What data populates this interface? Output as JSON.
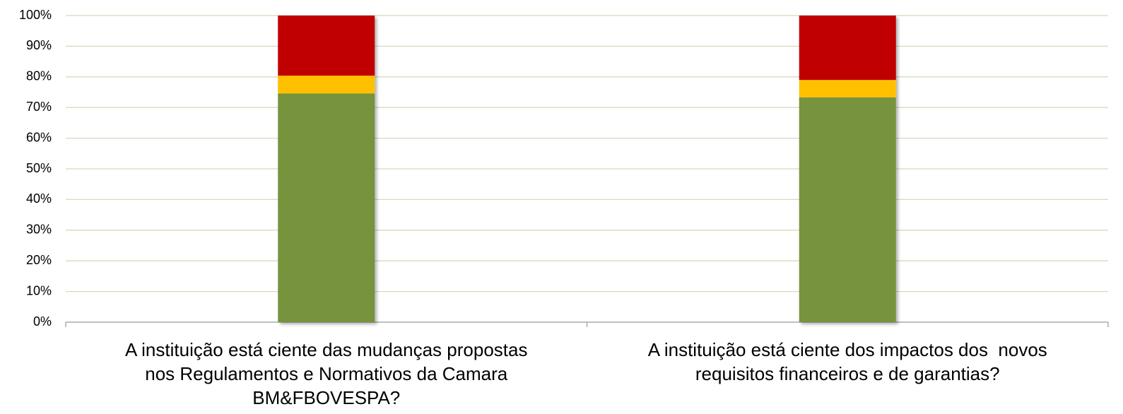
{
  "chart_data": {
    "type": "stacked_bar",
    "categories": [
      "A instituição está ciente das mudanças propostas\nnos Regulamentos e Normativos da Camara\nBM&FBOVESPA?",
      "A instituição está ciente dos impactos dos  novos\nrequisitos financeiros e de garantias?"
    ],
    "series": [
      {
        "color": "#77933c",
        "values": [
          74.6,
          73.3
        ]
      },
      {
        "color": "#ffc000",
        "values": [
          5.8,
          5.7
        ]
      },
      {
        "color": "#c00000",
        "values": [
          19.6,
          21.0
        ]
      }
    ],
    "ylim": [
      0,
      100
    ],
    "yticks": [
      {
        "value": 0,
        "label": "0%"
      },
      {
        "value": 10,
        "label": "10%"
      },
      {
        "value": 20,
        "label": "20%"
      },
      {
        "value": 30,
        "label": "30%"
      },
      {
        "value": 40,
        "label": "40%"
      },
      {
        "value": 50,
        "label": "50%"
      },
      {
        "value": 60,
        "label": "60%"
      },
      {
        "value": 70,
        "label": "70%"
      },
      {
        "value": 80,
        "label": "80%"
      },
      {
        "value": 90,
        "label": "90%"
      },
      {
        "value": 100,
        "label": "100%"
      }
    ],
    "grid": true
  }
}
